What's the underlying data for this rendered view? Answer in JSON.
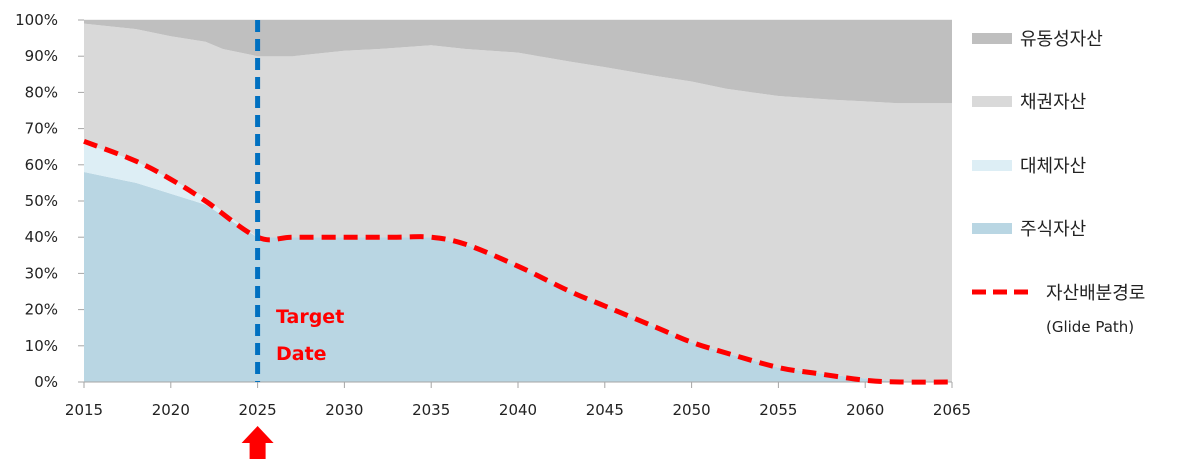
{
  "chart_data": {
    "type": "area",
    "x": [
      2015,
      2018,
      2020,
      2022,
      2023,
      2025,
      2027,
      2030,
      2032,
      2035,
      2037,
      2040,
      2043,
      2045,
      2048,
      2050,
      2052,
      2055,
      2058,
      2060,
      2062,
      2065
    ],
    "series": [
      {
        "name": "주식자산",
        "color": "#b9d6e3",
        "values": [
          58,
          55,
          52,
          49,
          46,
          40,
          40,
          40,
          40,
          40,
          38,
          32,
          25,
          21,
          15,
          11,
          8,
          4,
          2,
          1,
          0,
          0
        ]
      },
      {
        "name": "대체자산",
        "color": "#ddeef5",
        "values": [
          8,
          6,
          4,
          2,
          1,
          0,
          0,
          0,
          0,
          0,
          0,
          0,
          0,
          0,
          0,
          0,
          0,
          0,
          0,
          0,
          0,
          0
        ]
      },
      {
        "name": "채권자산",
        "color": "#d9d9d9",
        "values": [
          33,
          36.5,
          39.5,
          43,
          45,
          50,
          50,
          51.5,
          52,
          53,
          54,
          59,
          63.5,
          66,
          69.5,
          72,
          73,
          75,
          76,
          76.5,
          77,
          77
        ]
      },
      {
        "name": "유동성자산",
        "color": "#bfbfbf",
        "values": [
          1,
          2.5,
          4.5,
          6,
          8,
          10,
          10,
          8.5,
          8,
          7,
          8,
          9,
          11.5,
          13,
          15.5,
          17,
          19,
          21,
          22,
          22.5,
          23,
          23
        ]
      }
    ],
    "glide_path": {
      "name": "자산배분경로",
      "sub_label": "(Glide Path)",
      "color": "#ff0000",
      "x": [
        2015,
        2018,
        2020,
        2022,
        2025,
        2027,
        2030,
        2033,
        2035,
        2037,
        2040,
        2043,
        2045,
        2048,
        2050,
        2052,
        2055,
        2057,
        2060,
        2062,
        2065
      ],
      "values": [
        66.5,
        61,
        56,
        50,
        40,
        40,
        40,
        40,
        40,
        38,
        32,
        25,
        21,
        15,
        11,
        8,
        4,
        2.5,
        0.5,
        0,
        0
      ]
    },
    "target": {
      "year": 2025,
      "label_line1": "Target",
      "label_line2": "Date",
      "line_color": "#0070c0",
      "arrow_color": "#ff0000"
    },
    "xlim": [
      2015,
      2065
    ],
    "ylim": [
      0,
      100
    ],
    "x_ticks": [
      "2015",
      "2020",
      "2025",
      "2030",
      "2035",
      "2040",
      "2045",
      "2050",
      "2055",
      "2060",
      "2065"
    ],
    "y_ticks": [
      "0%",
      "10%",
      "20%",
      "30%",
      "40%",
      "50%",
      "60%",
      "70%",
      "80%",
      "90%",
      "100%"
    ],
    "legend_order": [
      "유동성자산",
      "채권자산",
      "대체자산",
      "주식자산"
    ],
    "legend_position": "right"
  }
}
